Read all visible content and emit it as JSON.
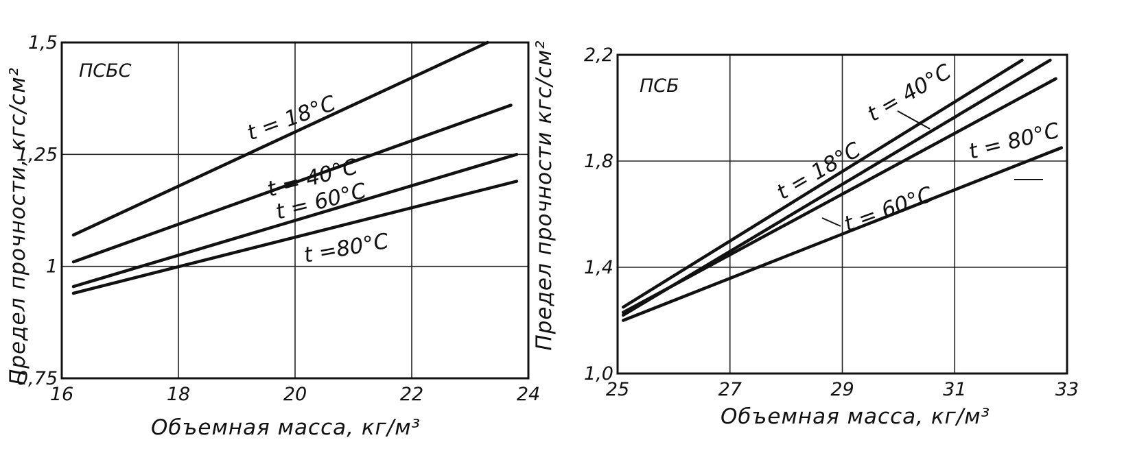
{
  "chart_data": [
    {
      "type": "line",
      "title": "ПСБС",
      "xlabel": "Объемная масса, кг/м³",
      "ylabel": "Предел прочности, кгс/см²",
      "xlim": [
        16,
        24
      ],
      "ylim": [
        0.75,
        1.5
      ],
      "x_ticks": [
        "16",
        "18",
        "20",
        "22",
        "24"
      ],
      "y_ticks": [
        "0,75",
        "1",
        "1,25",
        "1,5"
      ],
      "grid": true,
      "series": [
        {
          "name": "t = 18°C",
          "x": [
            16.2,
            23.3
          ],
          "y": [
            1.07,
            1.5
          ]
        },
        {
          "name": "t = 40°C",
          "x": [
            16.2,
            23.7
          ],
          "y": [
            1.01,
            1.36
          ]
        },
        {
          "name": "t = 60°C",
          "x": [
            16.2,
            23.8
          ],
          "y": [
            0.955,
            1.25
          ]
        },
        {
          "name": "t =80°C",
          "x": [
            16.2,
            23.8
          ],
          "y": [
            0.94,
            1.19
          ]
        }
      ]
    },
    {
      "type": "line",
      "title": "ПСБ",
      "xlabel": "Объемная масса, кг/м³",
      "ylabel": "Предел прочности кгс/см²",
      "xlim": [
        25,
        33
      ],
      "ylim": [
        1.0,
        2.2
      ],
      "x_ticks": [
        "25",
        "27",
        "29",
        "31",
        "33"
      ],
      "y_ticks": [
        "1,0",
        "1,4",
        "1,8",
        "2,2"
      ],
      "grid": true,
      "series": [
        {
          "name": "t = 18°C",
          "x": [
            25.1,
            32.2
          ],
          "y": [
            1.25,
            2.18
          ]
        },
        {
          "name": "t = 40°C",
          "x": [
            25.1,
            32.7
          ],
          "y": [
            1.22,
            2.18
          ]
        },
        {
          "name": "t = 60°C",
          "x": [
            25.1,
            32.8
          ],
          "y": [
            1.23,
            2.11
          ]
        },
        {
          "name": "t = 80°C",
          "x": [
            25.1,
            32.9
          ],
          "y": [
            1.2,
            1.85
          ]
        }
      ]
    }
  ]
}
